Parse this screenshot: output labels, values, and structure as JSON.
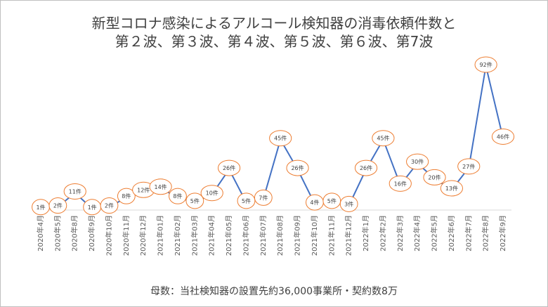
{
  "chart_data": {
    "type": "line",
    "title_line1": "新型コロナ感染によるアルコール検知器の消毒依頼件数と",
    "title_line2": "第２波、第３波、第４波、第５波、第６波、第7波",
    "footnote": "母数：当社検知器の設置先約36,000事業所・契約数8万",
    "categories": [
      "2020年4月",
      "2020年5月",
      "2020年8月",
      "2020年9月",
      "2020年10月",
      "2020年11月",
      "2020年12月",
      "2021年01月",
      "2021年02月",
      "2021年03月",
      "2021年04月",
      "2021年05月",
      "2021年06月",
      "2021年07月",
      "2021年08月",
      "2021年09月",
      "2021年10月",
      "2021年11月",
      "2021年12月",
      "2022年1月",
      "2022年2月",
      "2022年3月",
      "2022年4月",
      "2022年5月",
      "2022年6月",
      "2022年7月",
      "2022年8月",
      "2022年9月"
    ],
    "values": [
      1,
      2,
      11,
      1,
      2,
      8,
      12,
      14,
      8,
      5,
      10,
      26,
      5,
      7,
      45,
      26,
      4,
      5,
      3,
      26,
      45,
      16,
      30,
      20,
      13,
      27,
      92,
      46
    ],
    "data_labels": [
      "1件",
      "2件",
      "11件",
      "1件",
      "2件",
      "8件",
      "12件",
      "14件",
      "8件",
      "5件",
      "10件",
      "26件",
      "5件",
      "7件",
      "45件",
      "26件",
      "4件",
      "5件",
      "3件",
      "26件",
      "45件",
      "16件",
      "30件",
      "20件",
      "13件",
      "27件",
      "92件",
      "46件"
    ],
    "line_color": "#4472c4",
    "label_border_color": "#ed7d31",
    "axis_color": "#d9d9d9",
    "grid": false,
    "legend": "none"
  }
}
